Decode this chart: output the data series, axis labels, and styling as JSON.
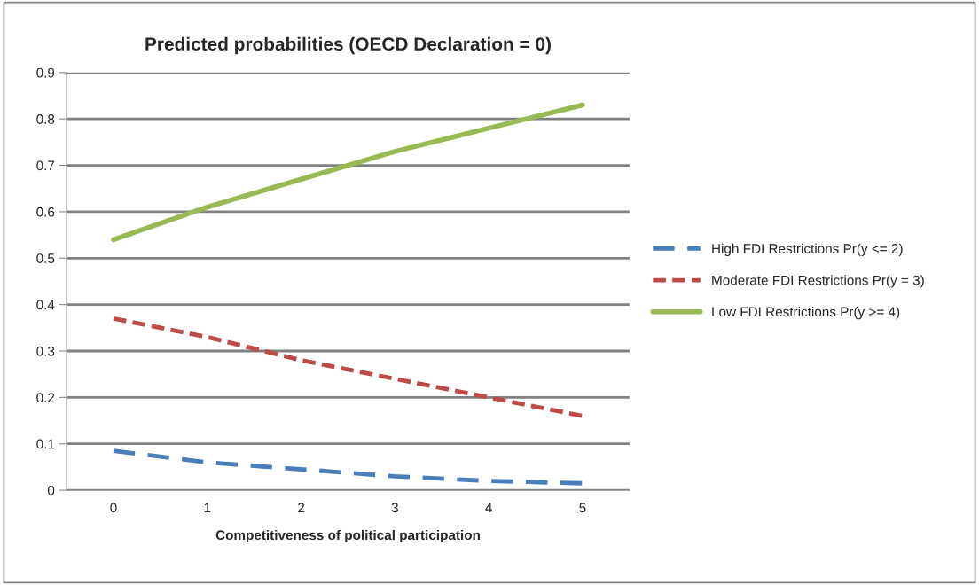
{
  "chart_data": {
    "type": "line",
    "title": "Predicted probabilities (OECD Declaration = 0)",
    "xlabel": "Competitiveness of political participation",
    "categories": [
      "0",
      "1",
      "2",
      "3",
      "4",
      "5"
    ],
    "series": [
      {
        "name": "High FDI Restrictions Pr(y <= 2)",
        "color": "#4a7ebb",
        "line_style": "dashed",
        "values": [
          0.085,
          0.06,
          0.045,
          0.03,
          0.02,
          0.015
        ]
      },
      {
        "name": "Moderate FDI Restrictions Pr(y = 3)",
        "color": "#be4b48",
        "line_style": "dotted",
        "values": [
          0.37,
          0.33,
          0.28,
          0.24,
          0.2,
          0.16
        ]
      },
      {
        "name": "Low FDI Restrictions Pr(y >= 4)",
        "color": "#98b954",
        "line_style": "solid",
        "values": [
          0.54,
          0.61,
          0.67,
          0.73,
          0.78,
          0.83
        ]
      }
    ],
    "ylim": [
      0,
      0.9
    ],
    "yticks": [
      0,
      0.1,
      0.2,
      0.3,
      0.4,
      0.5,
      0.6,
      0.7,
      0.8,
      0.9
    ],
    "grid": "y",
    "legend": "right",
    "marker": "none"
  }
}
